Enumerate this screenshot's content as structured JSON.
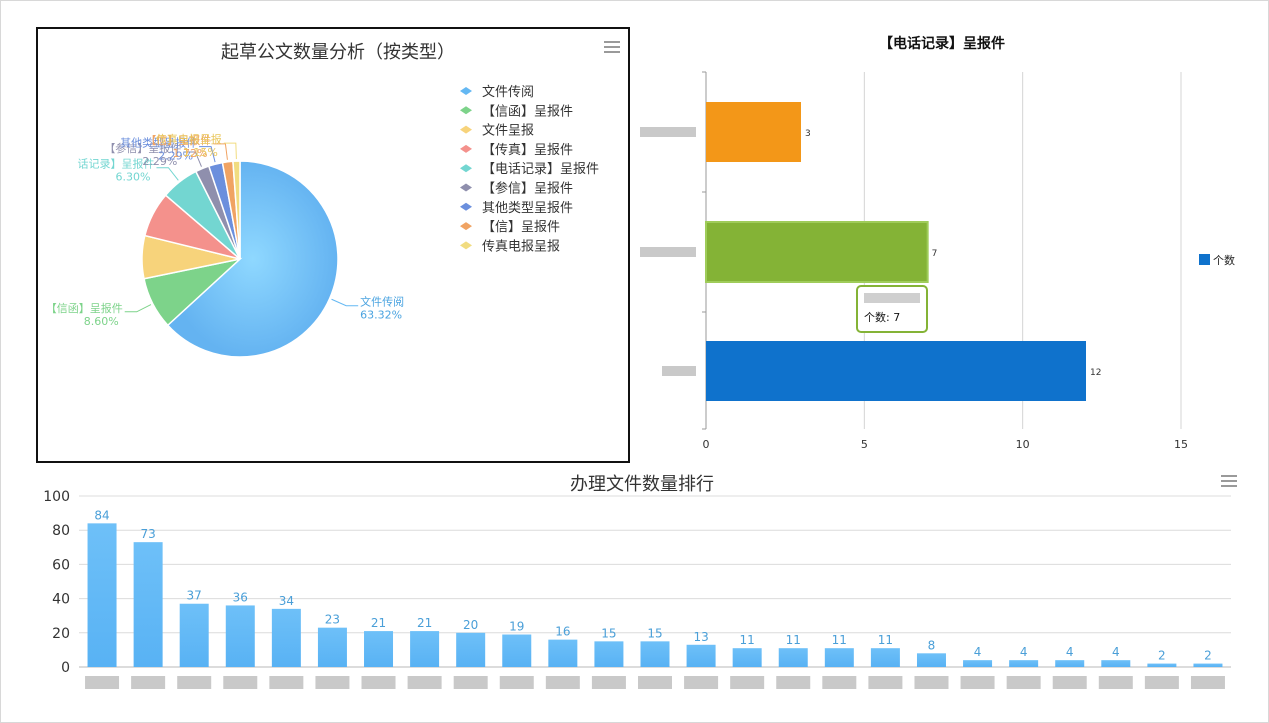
{
  "pie_chart": {
    "title": "起草公文数量分析（按类型）",
    "colors": [
      "#64b8f3",
      "#7dd38a",
      "#f7d37b",
      "#f4918c",
      "#73d6d1",
      "#8f8fad",
      "#6b8fdd",
      "#f0a363",
      "#f1dc80"
    ],
    "legend": [
      "文件传阅",
      "【信函】呈报件",
      "文件呈报",
      "【传真】呈报件",
      "【电话记录】呈报件",
      "【参信】呈报件",
      "其他类型呈报件",
      "【信】呈报件",
      "传真电报呈报"
    ]
  },
  "bar_chart": {
    "title": "【电话记录】呈报件",
    "legend": "个数",
    "tooltip": "个数: 7",
    "x_ticks": [
      "0",
      "5",
      "10",
      "15"
    ],
    "value_labels": [
      "3",
      "7",
      "12"
    ]
  },
  "column_chart": {
    "title": "办理文件数量排行",
    "y_ticks": [
      "0",
      "20",
      "40",
      "60",
      "80",
      "100"
    ]
  },
  "chart_data": [
    {
      "type": "pie",
      "title": "起草公文数量分析（按类型）",
      "legend_position": "right",
      "slices": [
        {
          "label": "文件传阅",
          "value": 63.32,
          "display": "63.32%"
        },
        {
          "label": "【信函】呈报件",
          "value": 8.6,
          "display": "8.60%"
        },
        {
          "label": "文件呈报",
          "value": 7.09,
          "display": ""
        },
        {
          "label": "【传真】呈报件",
          "value": 7.45,
          "display": ""
        },
        {
          "label": "【电话记录】呈报件",
          "value": 6.3,
          "display": "6.30%",
          "callout": "话记录】呈报件"
        },
        {
          "label": "【参信】呈报件",
          "value": 2.29,
          "display": "2.29%"
        },
        {
          "label": "其他类型呈报件",
          "value": 2.29,
          "display": "2.29%"
        },
        {
          "label": "【信】呈报件",
          "value": 1.72,
          "display": "1.72%"
        },
        {
          "label": "传真电报呈报",
          "value": 1.15,
          "display": "1.15%"
        }
      ]
    },
    {
      "type": "bar",
      "orientation": "horizontal",
      "title": "【电话记录】呈报件",
      "series": [
        {
          "name": "个数",
          "values": [
            3,
            7,
            12
          ]
        }
      ],
      "bar_colors": [
        "#f39718",
        "#84b336",
        "#0f72cc"
      ],
      "xlim": [
        0,
        15
      ],
      "grid": true,
      "legend_position": "right"
    },
    {
      "type": "bar",
      "title": "办理文件数量排行",
      "values": [
        84,
        73,
        37,
        36,
        34,
        23,
        21,
        21,
        20,
        19,
        16,
        15,
        15,
        13,
        11,
        11,
        11,
        11,
        8,
        4,
        4,
        4,
        4,
        2,
        2
      ],
      "ylim": [
        0,
        100
      ],
      "grid": true,
      "color": "#6ec0f8"
    }
  ]
}
